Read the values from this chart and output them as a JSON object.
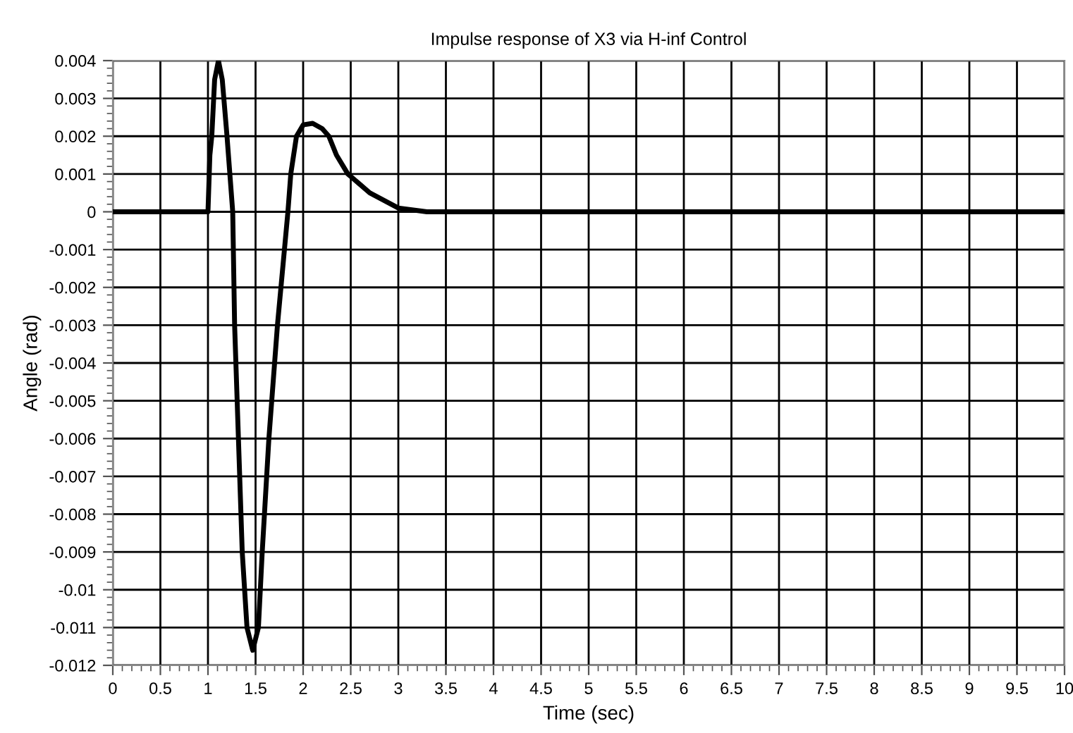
{
  "chart_data": {
    "type": "line",
    "title": "Impulse response of X3 via H-inf Control",
    "xlabel": "Time (sec)",
    "ylabel": "Angle (rad)",
    "series": [
      {
        "color": "#000000",
        "x": [
          0,
          1.0,
          1.02,
          1.04,
          1.07,
          1.11,
          1.15,
          1.2,
          1.26,
          1.28,
          1.32,
          1.36,
          1.41,
          1.47,
          1.53,
          1.57,
          1.64,
          1.73,
          1.84,
          1.87,
          1.93,
          2.0,
          2.1,
          2.2,
          2.27,
          2.35,
          2.47,
          2.7,
          3.0,
          3.3,
          3.6,
          10
        ],
        "values": [
          0,
          0,
          0.0015,
          0.002,
          0.0035,
          0.004,
          0.0035,
          0.002,
          0,
          -0.003,
          -0.006,
          -0.009,
          -0.011,
          -0.0116,
          -0.011,
          -0.009,
          -0.006,
          -0.003,
          0,
          0.001,
          0.002,
          0.0023,
          0.00234,
          0.0022,
          0.002,
          0.0015,
          0.001,
          0.0005,
          0.0001,
          0,
          0,
          0
        ]
      }
    ],
    "xlim": [
      0,
      10
    ],
    "xticks": [
      0,
      0.5,
      1,
      1.5,
      2,
      2.5,
      3,
      3.5,
      4,
      4.5,
      5,
      5.5,
      6,
      6.5,
      7,
      7.5,
      8,
      8.5,
      9,
      9.5,
      10
    ],
    "ylim": [
      -0.012,
      0.004
    ],
    "yticks": [
      -0.012,
      -0.011,
      -0.01,
      -0.009,
      -0.008,
      -0.007,
      -0.006,
      -0.005,
      -0.004,
      -0.003,
      -0.002,
      -0.001,
      0,
      0.001,
      0.002,
      0.003,
      0.004
    ],
    "grid": true,
    "marker": "none",
    "line_style": "solid"
  }
}
